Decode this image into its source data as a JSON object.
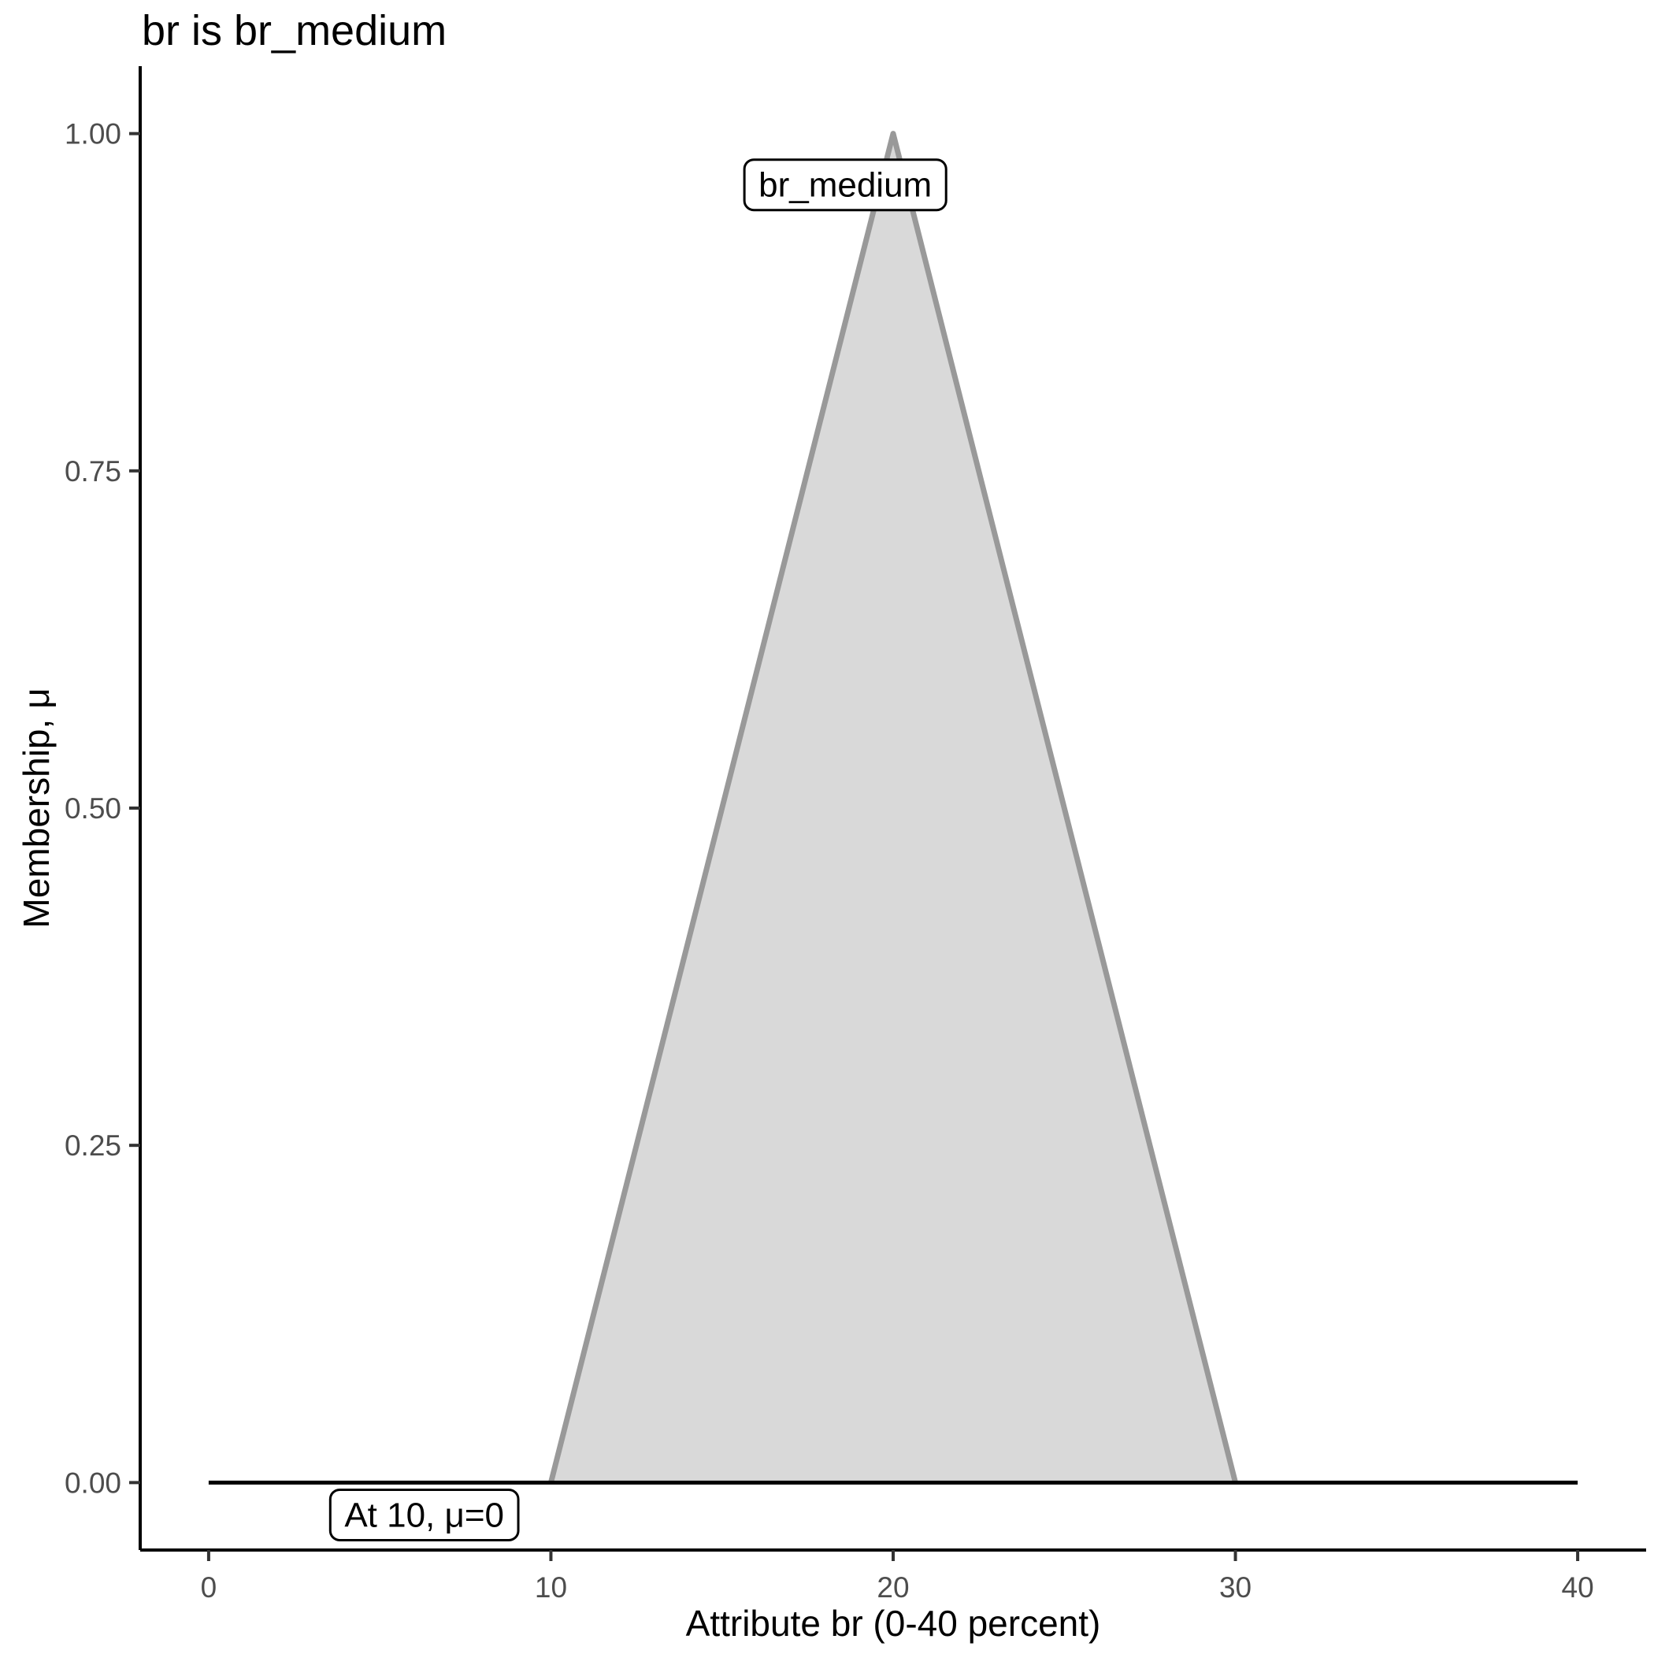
{
  "chart_data": {
    "type": "area",
    "title": "br is br_medium",
    "xlabel": "Attribute br (0-40 percent)",
    "ylabel": "Membership, μ",
    "xlim": [
      -2,
      42
    ],
    "ylim": [
      -0.05,
      1.05
    ],
    "x_ticks": [
      0,
      10,
      20,
      30,
      40
    ],
    "y_ticks": [
      0,
      0.25,
      0.5,
      0.75,
      1
    ],
    "y_tick_labels": [
      "0.00",
      "0.25",
      "0.50",
      "0.75",
      "1.00"
    ],
    "grid": false,
    "legend": "none",
    "series": [
      {
        "name": "br_medium membership function",
        "kind": "area",
        "x": [
          10,
          20,
          30
        ],
        "y": [
          0,
          1,
          0
        ],
        "fill": "#d9d9d9",
        "stroke": "#999999",
        "stroke_width": 7
      },
      {
        "name": "zero membership baseline",
        "kind": "line",
        "x": [
          0,
          40
        ],
        "y": [
          0,
          0
        ],
        "color": "#000000",
        "stroke_width": 5
      }
    ],
    "annotations": [
      {
        "text": "br_medium",
        "x": 18.6,
        "y": 0.962
      },
      {
        "text": "At 10, μ=0",
        "x": 6.3,
        "y": -0.024
      }
    ],
    "colors": {
      "background": "#ffffff",
      "axis_line": "#000000",
      "tick_mark": "#333333",
      "tick_label": "#4d4d4d",
      "text": "#000000",
      "annotation_bg": "#ffffff",
      "annotation_border": "#000000"
    }
  }
}
